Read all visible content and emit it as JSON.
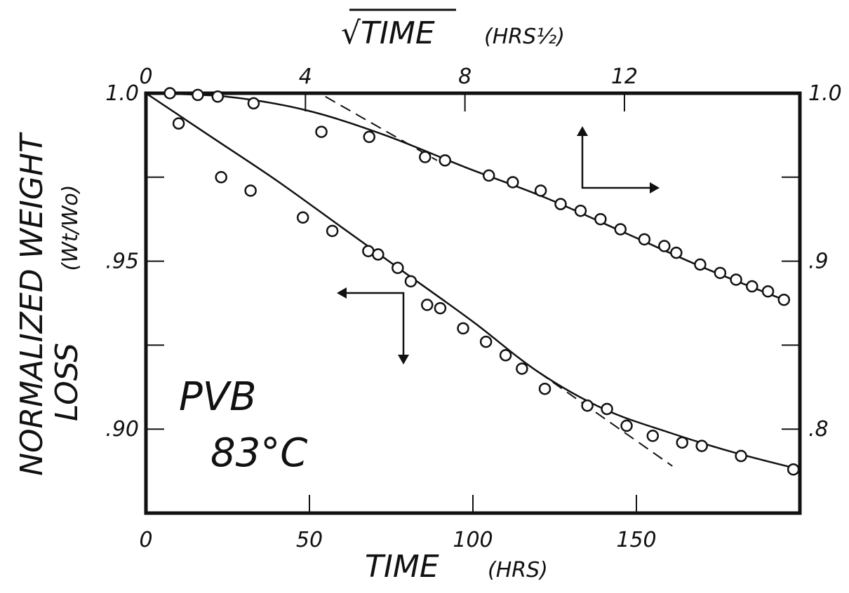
{
  "chart_data": {
    "type": "scatter",
    "title": "",
    "annotation": {
      "line1": "PVB",
      "line2": "83°C"
    },
    "axes": {
      "x_bottom": {
        "label": "TIME",
        "unit": "(HRS)",
        "range": [
          0,
          200
        ],
        "ticks": [
          0,
          50,
          100,
          150
        ],
        "tick_labels": [
          "0",
          "50",
          "100",
          "150"
        ]
      },
      "x_top": {
        "label": "√TIME",
        "unit": "(HRS½)",
        "range": [
          0,
          16.4
        ],
        "ticks": [
          0,
          4,
          8,
          12
        ],
        "tick_labels": [
          "0",
          "4",
          "8",
          "12"
        ]
      },
      "y_left": {
        "label": "NORMALIZED WEIGHT",
        "label_line2": "LOSS",
        "unit": "(Wt/Wo)",
        "range": [
          0.875,
          1.0
        ],
        "ticks": [
          0.9,
          0.95,
          1.0
        ],
        "tick_labels": [
          ".90",
          ".95",
          "1.0"
        ]
      },
      "y_right": {
        "range": [
          0.75,
          1.0
        ],
        "ticks": [
          0.8,
          0.9,
          1.0
        ],
        "tick_labels": [
          ".8",
          ".9",
          "1.0"
        ]
      }
    },
    "grid": false,
    "legend": "none",
    "series": [
      {
        "x_axis": "x_bottom",
        "y_axis": "y_left",
        "fit_line": "solid",
        "points": [
          [
            10,
            0.991
          ],
          [
            23,
            0.975
          ],
          [
            32,
            0.971
          ],
          [
            48,
            0.963
          ],
          [
            57,
            0.959
          ],
          [
            68,
            0.953
          ],
          [
            71,
            0.952
          ],
          [
            77,
            0.948
          ],
          [
            81,
            0.944
          ],
          [
            86,
            0.937
          ],
          [
            90,
            0.936
          ],
          [
            97,
            0.93
          ],
          [
            104,
            0.926
          ],
          [
            110,
            0.922
          ],
          [
            115,
            0.918
          ],
          [
            122,
            0.912
          ],
          [
            135,
            0.907
          ],
          [
            141,
            0.906
          ],
          [
            147,
            0.901
          ],
          [
            155,
            0.898
          ],
          [
            164,
            0.896
          ],
          [
            170,
            0.895
          ],
          [
            182,
            0.892
          ],
          [
            198,
            0.888
          ]
        ],
        "fit_points": [
          [
            0,
            1.0
          ],
          [
            20,
            0.987
          ],
          [
            40,
            0.974
          ],
          [
            60,
            0.96
          ],
          [
            80,
            0.946
          ],
          [
            100,
            0.932
          ],
          [
            120,
            0.917
          ],
          [
            140,
            0.906
          ],
          [
            160,
            0.899
          ],
          [
            180,
            0.893
          ],
          [
            200,
            0.888
          ]
        ],
        "asymptote": [
          [
            120,
            0.917
          ],
          [
            161,
            0.889
          ]
        ]
      },
      {
        "x_axis": "x_top",
        "y_axis": "y_right",
        "fit_line": "solid",
        "points": [
          [
            0.6,
            1.0
          ],
          [
            1.3,
            0.999
          ],
          [
            1.8,
            0.998
          ],
          [
            2.7,
            0.994
          ],
          [
            4.4,
            0.977
          ],
          [
            5.6,
            0.974
          ],
          [
            7.0,
            0.962
          ],
          [
            7.5,
            0.96
          ],
          [
            8.6,
            0.951
          ],
          [
            9.2,
            0.947
          ],
          [
            9.9,
            0.942
          ],
          [
            10.4,
            0.934
          ],
          [
            10.9,
            0.93
          ],
          [
            11.4,
            0.925
          ],
          [
            11.9,
            0.919
          ],
          [
            12.5,
            0.913
          ],
          [
            13.0,
            0.909
          ],
          [
            13.3,
            0.905
          ],
          [
            13.9,
            0.898
          ],
          [
            14.4,
            0.893
          ],
          [
            14.8,
            0.889
          ],
          [
            15.2,
            0.885
          ],
          [
            15.6,
            0.882
          ],
          [
            16.0,
            0.877
          ]
        ],
        "fit_points": [
          [
            0,
            1.0
          ],
          [
            2,
            0.998
          ],
          [
            4,
            0.99
          ],
          [
            6,
            0.975
          ],
          [
            8,
            0.956
          ],
          [
            10,
            0.938
          ],
          [
            12,
            0.917
          ],
          [
            14,
            0.896
          ],
          [
            16,
            0.877
          ]
        ],
        "asymptote": [
          [
            4.5,
            0.998
          ],
          [
            7.3,
            0.96
          ]
        ]
      }
    ],
    "colors": {
      "ink": "#111111",
      "background": "#ffffff"
    }
  }
}
